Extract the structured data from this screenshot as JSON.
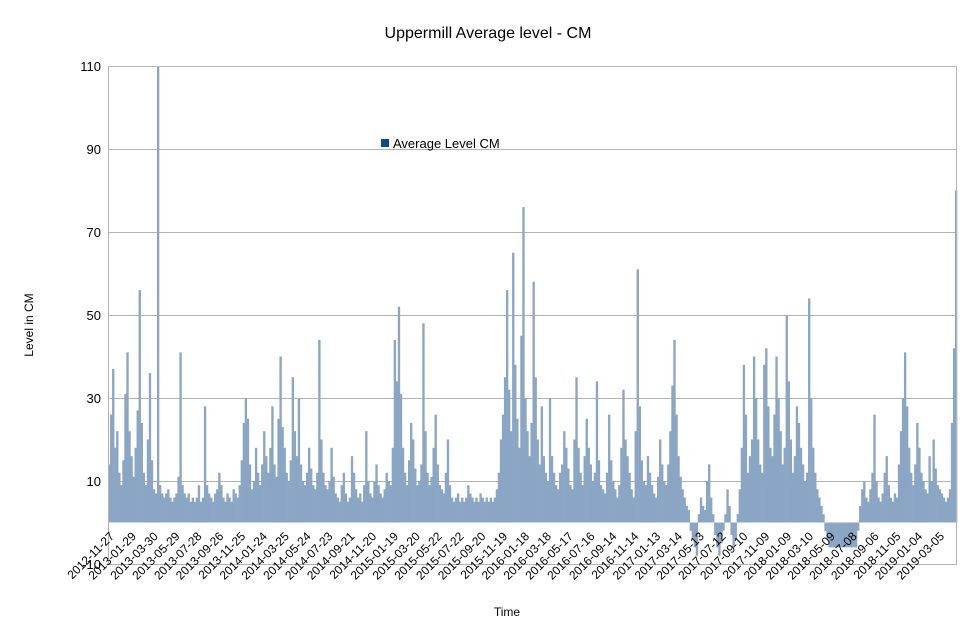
{
  "chart_data": {
    "type": "area",
    "title": "Uppermill Average level  - CM",
    "xlabel": "Time",
    "ylabel": "Level in CM",
    "ylim": [
      -10,
      110
    ],
    "yticks": [
      -10,
      10,
      30,
      50,
      70,
      90,
      110
    ],
    "grid": true,
    "legend_position": "top-left (inside plot)",
    "colors": {
      "series": "#8ba6c5",
      "legend_swatch": "#0e4a87",
      "gridline": "#b3b3b3",
      "axis": "#b3b3b3"
    },
    "x_tick_labels": [
      "2012-11-27",
      "2013-01-29",
      "2013-03-30",
      "2013-05-29",
      "2013-07-28",
      "2013-09-26",
      "2013-11-25",
      "2014-01-24",
      "2014-03-25",
      "2014-05-24",
      "2014-07-23",
      "2014-09-21",
      "2014-11-20",
      "2015-01-19",
      "2015-03-20",
      "2015-05-22",
      "2015-07-22",
      "2015-09-20",
      "2015-11-19",
      "2016-01-18",
      "2016-03-18",
      "2016-05-17",
      "2016-07-16",
      "2016-09-14",
      "2016-11-14",
      "2017-01-13",
      "2017-03-14",
      "2017-05-13",
      "2017-07-12",
      "2017-09-10",
      "2017-11-09",
      "2018-01-09",
      "2018-03-10",
      "2018-05-09",
      "2018-07-08",
      "2018-09-06",
      "2018-11-05",
      "2019-01-04",
      "2019-03-05"
    ],
    "series": [
      {
        "name": "Average Level CM",
        "x_start": "2012-11-27",
        "x_end": "2019-04-05",
        "values": [
          14,
          26,
          37,
          18,
          22,
          12,
          9,
          15,
          31,
          41,
          22,
          16,
          11,
          18,
          27,
          56,
          24,
          12,
          9,
          20,
          36,
          15,
          8,
          7,
          110,
          9,
          7,
          6,
          7,
          8,
          6,
          5,
          6,
          7,
          11,
          41,
          9,
          7,
          6,
          7,
          5,
          6,
          5,
          6,
          9,
          5,
          6,
          28,
          9,
          7,
          6,
          5,
          7,
          8,
          12,
          9,
          6,
          5,
          7,
          6,
          5,
          8,
          7,
          6,
          9,
          15,
          24,
          30,
          25,
          14,
          8,
          10,
          18,
          12,
          9,
          14,
          22,
          16,
          12,
          18,
          28,
          14,
          11,
          25,
          40,
          23,
          18,
          12,
          10,
          15,
          35,
          22,
          16,
          30,
          14,
          10,
          9,
          12,
          18,
          13,
          9,
          8,
          12,
          44,
          20,
          12,
          9,
          8,
          10,
          18,
          11,
          7,
          6,
          5,
          9,
          12,
          7,
          5,
          6,
          16,
          12,
          8,
          6,
          7,
          5,
          9,
          22,
          10,
          7,
          6,
          10,
          14,
          9,
          7,
          6,
          8,
          12,
          10,
          9,
          18,
          44,
          34,
          52,
          31,
          18,
          12,
          9,
          15,
          24,
          20,
          13,
          9,
          10,
          14,
          48,
          22,
          12,
          9,
          11,
          18,
          26,
          14,
          9,
          8,
          7,
          12,
          20,
          9,
          6,
          5,
          6,
          7,
          5,
          6,
          5,
          6,
          9,
          7,
          6,
          5,
          6,
          5,
          7,
          6,
          5,
          6,
          5,
          6,
          5,
          6,
          8,
          12,
          20,
          26,
          35,
          56,
          32,
          22,
          65,
          38,
          25,
          18,
          45,
          76,
          30,
          22,
          16,
          24,
          58,
          35,
          20,
          14,
          28,
          16,
          12,
          10,
          30,
          16,
          12,
          9,
          8,
          12,
          14,
          22,
          18,
          13,
          9,
          8,
          20,
          35,
          18,
          12,
          9,
          16,
          25,
          18,
          14,
          10,
          12,
          34,
          15,
          9,
          8,
          7,
          12,
          26,
          15,
          10,
          8,
          6,
          9,
          18,
          32,
          20,
          16,
          12,
          8,
          6,
          22,
          61,
          28,
          15,
          10,
          9,
          16,
          12,
          9,
          7,
          6,
          11,
          20,
          14,
          10,
          9,
          14,
          22,
          33,
          44,
          26,
          16,
          11,
          8,
          6,
          4,
          3,
          -2,
          -4,
          -6,
          -8,
          2,
          6,
          4,
          3,
          10,
          14,
          6,
          2,
          -3,
          -6,
          -8,
          -5,
          -2,
          2,
          8,
          4,
          -3,
          -6,
          -4,
          2,
          8,
          18,
          38,
          26,
          12,
          16,
          20,
          40,
          30,
          20,
          14,
          12,
          38,
          42,
          28,
          18,
          16,
          26,
          40,
          30,
          22,
          14,
          18,
          50,
          34,
          20,
          12,
          16,
          28,
          24,
          18,
          14,
          10,
          12,
          54,
          30,
          18,
          12,
          8,
          6,
          4,
          2,
          -2,
          -4,
          -6,
          -6,
          -6,
          -6,
          -6,
          -6,
          -6,
          -6,
          -6,
          -6,
          -6,
          -6,
          -6,
          -6,
          -2,
          4,
          8,
          10,
          6,
          5,
          8,
          12,
          26,
          10,
          6,
          5,
          7,
          12,
          16,
          9,
          6,
          5,
          7,
          6,
          14,
          22,
          30,
          41,
          28,
          18,
          12,
          9,
          14,
          24,
          18,
          12,
          10,
          8,
          7,
          16,
          10,
          20,
          13,
          9,
          8,
          7,
          6,
          5,
          6,
          8,
          24,
          42,
          80
        ]
      }
    ]
  }
}
